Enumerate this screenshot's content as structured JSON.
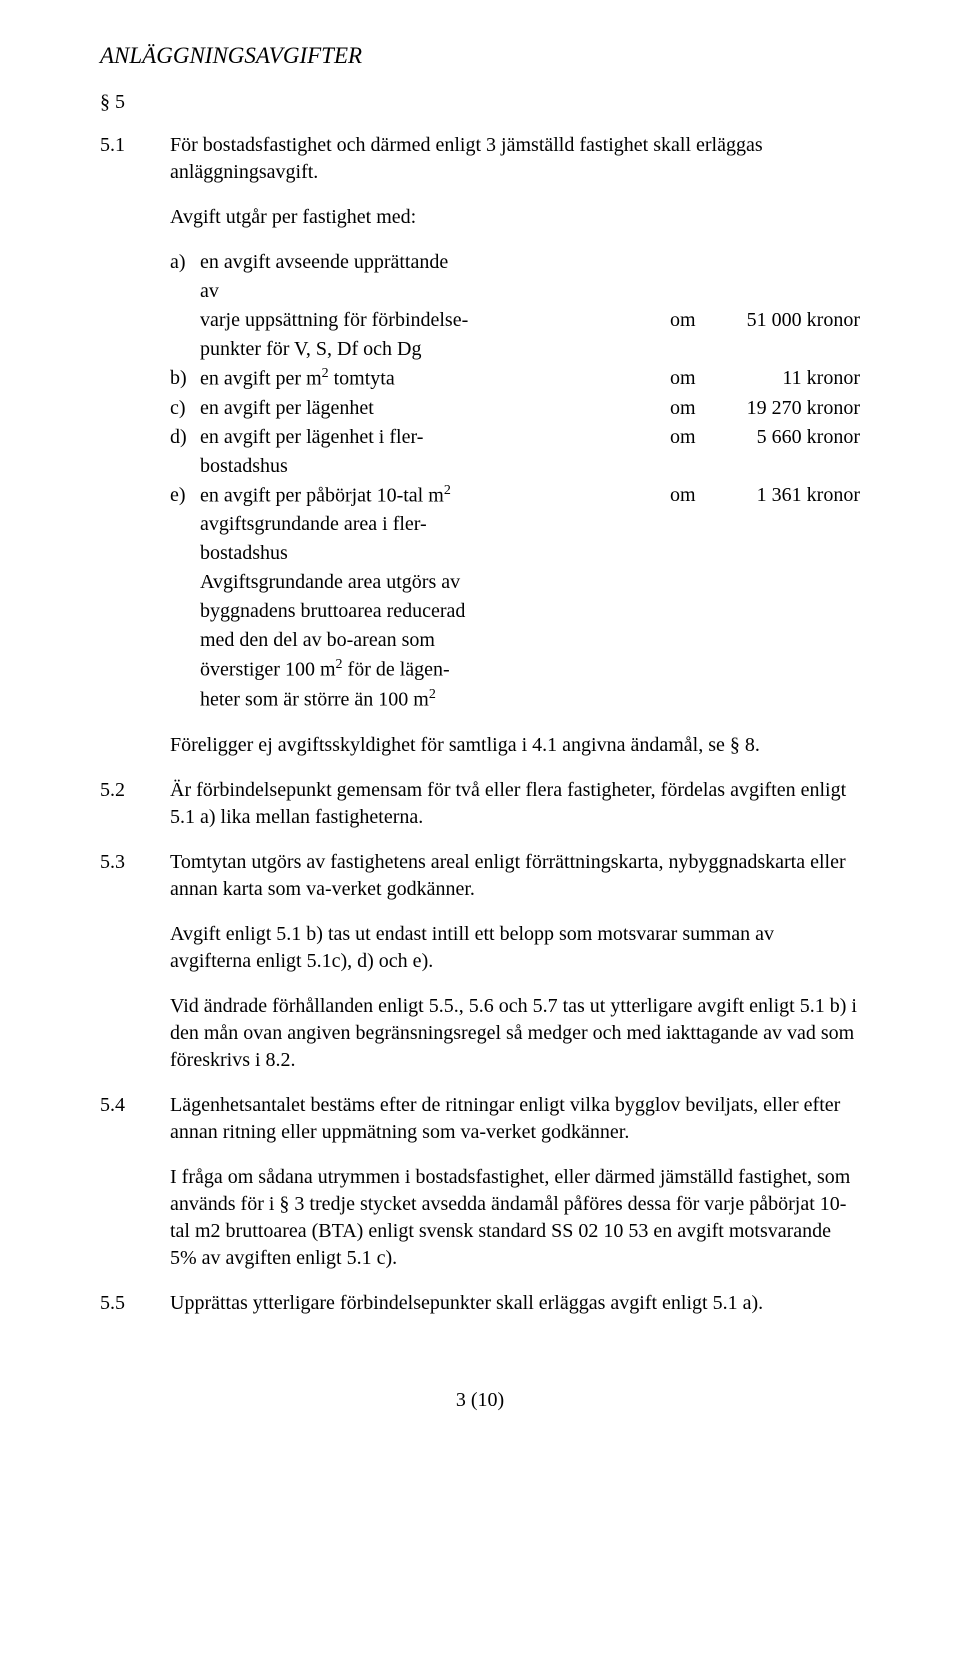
{
  "heading": "ANLÄGGNINGSAVGIFTER",
  "section": "§ 5",
  "p51": {
    "num": "5.1",
    "text": "För bostadsfastighet och därmed enligt 3 jämställd fastighet skall erläggas anläggningsavgift."
  },
  "intro": "Avgift utgår per fastighet med:",
  "fees": {
    "a": {
      "letter": "a)",
      "l1": "en avgift avseende upprättande",
      "l2": "av",
      "l3": "varje uppsättning för förbindelse-",
      "l4": "punkter för V, S, Df och Dg",
      "om": "om",
      "amount": "51 000 kronor"
    },
    "b": {
      "letter": "b)",
      "desc_pre": "en avgift per m",
      "sup": "2",
      "desc_post": " tomtyta",
      "om": "om",
      "amount": "11 kronor"
    },
    "c": {
      "letter": "c)",
      "desc": "en avgift per lägenhet",
      "om": "om",
      "amount": "19 270 kronor"
    },
    "d": {
      "letter": "d)",
      "l1": "en avgift per lägenhet i fler-",
      "l2": "bostadshus",
      "om": "om",
      "amount": "5 660 kronor"
    },
    "e": {
      "letter": "e)",
      "l1_pre": "en avgift per påbörjat 10-tal m",
      "l1_sup": "2",
      "l2": "avgiftsgrundande area i fler-",
      "l3": "bostadshus",
      "l4": "Avgiftsgrundande area utgörs av",
      "l5": "byggnadens bruttoarea reducerad",
      "l6": "med den del av bo-arean som",
      "l7_pre": "överstiger 100 m",
      "l7_sup": "2",
      "l7_post": " för de lägen-",
      "l8_pre": "heter som är större än 100 m",
      "l8_sup": "2",
      "om": "om",
      "amount": "1 361 kronor"
    }
  },
  "footnote": "Föreligger ej avgiftsskyldighet för samtliga i 4.1 angivna ändamål, se § 8.",
  "p52": {
    "num": "5.2",
    "text": "Är förbindelsepunkt gemensam för två eller flera fastigheter, fördelas avgiften enligt 5.1 a) lika mellan fastigheterna."
  },
  "p53": {
    "num": "5.3",
    "t1": "Tomtytan utgörs av fastighetens areal enligt förrättningskarta, nybyggnadskarta eller annan karta som va-verket godkänner.",
    "t2": "Avgift enligt 5.1 b) tas ut endast intill ett belopp som motsvarar summan av avgifterna enligt 5.1c), d) och e).",
    "t3": "Vid ändrade förhållanden enligt 5.5., 5.6 och 5.7 tas ut ytterligare avgift enligt 5.1 b) i den mån ovan angiven begränsningsregel så medger och med iakttagande av vad som föreskrivs i 8.2."
  },
  "p54": {
    "num": "5.4",
    "t1": "Lägenhetsantalet bestäms efter de ritningar enligt vilka bygglov beviljats, eller efter annan ritning eller uppmätning som va-verket godkänner.",
    "t2": "I fråga om sådana utrymmen i bostadsfastighet, eller därmed jämställd fastighet, som används för i § 3 tredje stycket avsedda ändamål påföres dessa för varje påbörjat 10-tal m2 bruttoarea (BTA) enligt svensk standard SS 02 10 53 en avgift motsvarande 5% av avgiften enligt 5.1 c)."
  },
  "p55": {
    "num": "5.5",
    "text": "Upprättas ytterligare förbindelsepunkter skall erläggas avgift enligt 5.1 a)."
  },
  "pagenum": "3 (10)"
}
